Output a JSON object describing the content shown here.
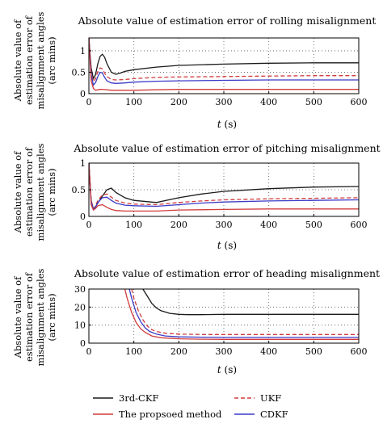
{
  "colors": {
    "3rd-CKF": "#1a1a1a",
    "The propsoed method": "#d13b3b",
    "UKF": "#d13b3b",
    "CDKF": "#3a3ac8",
    "grid": "#555555",
    "axis": "#000000"
  },
  "legend": {
    "placement": "bottom",
    "entries": [
      {
        "name": "3rd-CKF",
        "color": "#1a1a1a",
        "dash": false
      },
      {
        "name": "UKF",
        "color": "#d13b3b",
        "dash": true
      },
      {
        "name": "The propsoed method",
        "color": "#d13b3b",
        "dash": false
      },
      {
        "name": "CDKF",
        "color": "#3a3ac8",
        "dash": false
      }
    ]
  },
  "chart_data": [
    {
      "type": "line",
      "title": "Absolute value of estimation error of rolling misalignment",
      "ylabel_lines": [
        "Absolute value of",
        "estimation error of",
        "misalignment angles",
        "(arc mins)"
      ],
      "xlabel": "t (s)",
      "xlabel_var": "t",
      "xlabel_unit": " (s)",
      "xlim": [
        0,
        600
      ],
      "ylim": [
        0,
        1.3
      ],
      "xticks": [
        0,
        100,
        200,
        300,
        400,
        500,
        600
      ],
      "yticks": [
        0,
        0.5,
        1
      ],
      "ytick_labels": [
        "0",
        "0.5",
        "1"
      ],
      "grid": "dotted",
      "series": [
        {
          "name": "3rd-CKF",
          "dash": false,
          "x": [
            0,
            5,
            10,
            15,
            20,
            25,
            30,
            35,
            40,
            50,
            60,
            70,
            80,
            100,
            150,
            200,
            300,
            400,
            500,
            600
          ],
          "y": [
            1.3,
            0.6,
            0.35,
            0.45,
            0.7,
            0.87,
            0.92,
            0.85,
            0.7,
            0.5,
            0.45,
            0.48,
            0.52,
            0.56,
            0.62,
            0.66,
            0.69,
            0.71,
            0.72,
            0.72
          ]
        },
        {
          "name": "UKF",
          "dash": true,
          "x": [
            0,
            5,
            10,
            15,
            20,
            25,
            30,
            35,
            40,
            50,
            60,
            80,
            100,
            150,
            200,
            300,
            400,
            500,
            600
          ],
          "y": [
            1.3,
            0.5,
            0.28,
            0.35,
            0.52,
            0.6,
            0.58,
            0.48,
            0.4,
            0.33,
            0.32,
            0.33,
            0.35,
            0.38,
            0.39,
            0.4,
            0.41,
            0.42,
            0.42
          ]
        },
        {
          "name": "CDKF",
          "dash": false,
          "x": [
            0,
            5,
            10,
            15,
            20,
            25,
            30,
            35,
            40,
            50,
            60,
            80,
            100,
            150,
            200,
            300,
            400,
            500,
            600
          ],
          "y": [
            1.3,
            0.45,
            0.2,
            0.26,
            0.4,
            0.5,
            0.48,
            0.38,
            0.3,
            0.25,
            0.24,
            0.25,
            0.27,
            0.29,
            0.3,
            0.31,
            0.32,
            0.32,
            0.32
          ]
        },
        {
          "name": "The propsoed method",
          "dash": false,
          "x": [
            0,
            5,
            10,
            15,
            20,
            25,
            30,
            40,
            50,
            60,
            80,
            100,
            150,
            200,
            300,
            400,
            500,
            600
          ],
          "y": [
            1.3,
            0.3,
            0.12,
            0.08,
            0.09,
            0.1,
            0.1,
            0.09,
            0.08,
            0.08,
            0.08,
            0.08,
            0.09,
            0.1,
            0.1,
            0.1,
            0.1,
            0.1
          ]
        }
      ]
    },
    {
      "type": "line",
      "title": "Absolute value of estimation error of pitching misalignment",
      "ylabel_lines": [
        "Absolute value of",
        "estimation error of",
        "misalignment angles",
        "(arc mins)"
      ],
      "xlabel": "t (s)",
      "xlabel_var": "t",
      "xlabel_unit": " (s)",
      "xlim": [
        0,
        600
      ],
      "ylim": [
        0,
        1.0
      ],
      "xticks": [
        0,
        100,
        200,
        300,
        400,
        500,
        600
      ],
      "yticks": [
        0,
        0.5,
        1
      ],
      "ytick_labels": [
        "0",
        "0.5",
        "1"
      ],
      "grid": "dotted",
      "series": [
        {
          "name": "3rd-CKF",
          "dash": false,
          "x": [
            0,
            5,
            10,
            15,
            20,
            30,
            40,
            50,
            60,
            80,
            100,
            150,
            200,
            250,
            300,
            400,
            500,
            600
          ],
          "y": [
            1.0,
            0.3,
            0.14,
            0.18,
            0.25,
            0.38,
            0.5,
            0.53,
            0.45,
            0.35,
            0.3,
            0.26,
            0.35,
            0.42,
            0.47,
            0.52,
            0.55,
            0.56
          ]
        },
        {
          "name": "UKF",
          "dash": true,
          "x": [
            0,
            5,
            10,
            15,
            20,
            30,
            40,
            50,
            60,
            80,
            100,
            150,
            200,
            250,
            300,
            400,
            500,
            600
          ],
          "y": [
            1.0,
            0.3,
            0.14,
            0.2,
            0.3,
            0.4,
            0.42,
            0.36,
            0.3,
            0.25,
            0.23,
            0.22,
            0.26,
            0.29,
            0.31,
            0.33,
            0.34,
            0.35
          ]
        },
        {
          "name": "CDKF",
          "dash": false,
          "x": [
            0,
            5,
            10,
            15,
            20,
            30,
            40,
            50,
            60,
            80,
            100,
            150,
            200,
            250,
            300,
            400,
            500,
            600
          ],
          "y": [
            1.0,
            0.28,
            0.13,
            0.18,
            0.26,
            0.35,
            0.36,
            0.3,
            0.25,
            0.21,
            0.2,
            0.19,
            0.22,
            0.25,
            0.27,
            0.29,
            0.3,
            0.31
          ]
        },
        {
          "name": "The propsoed method",
          "dash": false,
          "x": [
            0,
            5,
            10,
            15,
            20,
            30,
            40,
            50,
            60,
            80,
            100,
            150,
            200,
            300,
            400,
            500,
            600
          ],
          "y": [
            1.0,
            0.22,
            0.12,
            0.15,
            0.2,
            0.22,
            0.17,
            0.13,
            0.11,
            0.1,
            0.1,
            0.1,
            0.12,
            0.13,
            0.14,
            0.14,
            0.14
          ]
        }
      ]
    },
    {
      "type": "line",
      "title": "Absolute value of estimation error of heading misalignment",
      "ylabel_lines": [
        "Absolute value of",
        "estimation error of",
        "misalignment angles",
        "(arc mins)"
      ],
      "xlabel": "t (s)",
      "xlabel_var": "t",
      "xlabel_unit": " (s)",
      "xlim": [
        0,
        600
      ],
      "ylim": [
        0,
        30
      ],
      "xticks": [
        0,
        100,
        200,
        300,
        400,
        500,
        600
      ],
      "yticks": [
        0,
        10,
        20,
        30
      ],
      "ytick_labels": [
        "0",
        "10",
        "20",
        "30"
      ],
      "grid": "dotted",
      "series": [
        {
          "name": "3rd-CKF",
          "dash": false,
          "x": [
            120,
            130,
            140,
            150,
            160,
            180,
            200,
            220,
            250,
            300,
            400,
            500,
            600
          ],
          "y": [
            30,
            26,
            22,
            19.5,
            18,
            16.5,
            16,
            15.8,
            15.8,
            16,
            16,
            16,
            16
          ]
        },
        {
          "name": "UKF",
          "dash": true,
          "x": [
            95,
            100,
            110,
            120,
            130,
            140,
            150,
            170,
            200,
            250,
            300,
            400,
            500,
            600
          ],
          "y": [
            30,
            25,
            18,
            13,
            9.5,
            7.5,
            6.5,
            5.5,
            5,
            4.8,
            4.8,
            4.8,
            4.8,
            4.8
          ]
        },
        {
          "name": "CDKF",
          "dash": false,
          "x": [
            90,
            95,
            105,
            115,
            125,
            135,
            150,
            170,
            200,
            250,
            300,
            400,
            500,
            600
          ],
          "y": [
            30,
            25,
            17,
            12,
            8.5,
            6.5,
            5,
            4,
            3.5,
            3.3,
            3.2,
            3.2,
            3.2,
            3.2
          ]
        },
        {
          "name": "The propsoed method",
          "dash": false,
          "x": [
            80,
            85,
            95,
            105,
            115,
            125,
            140,
            160,
            200,
            250,
            300,
            400,
            500,
            600
          ],
          "y": [
            30,
            25,
            17,
            11.5,
            8,
            6,
            4,
            3,
            2.4,
            2.2,
            2.1,
            2.1,
            2.1,
            2.1
          ]
        }
      ]
    }
  ]
}
